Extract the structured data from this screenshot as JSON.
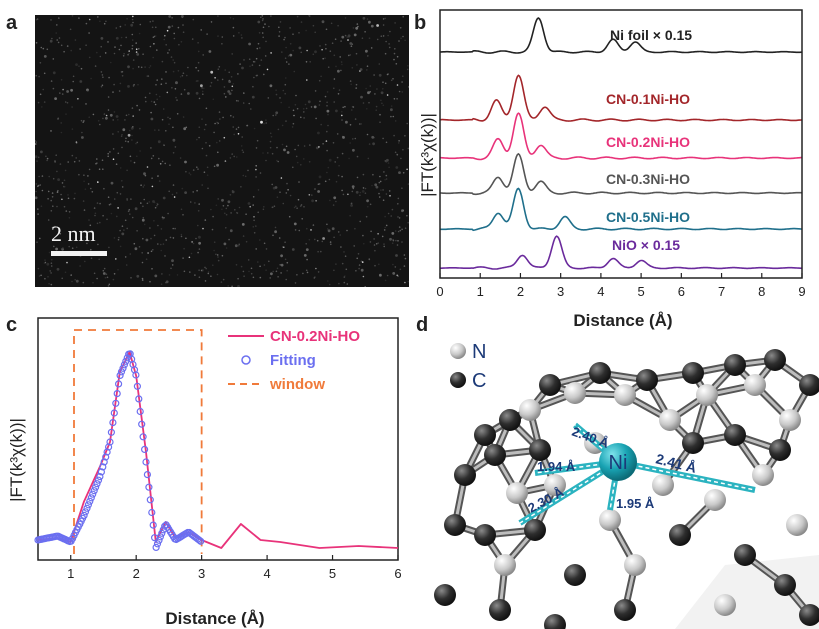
{
  "panels": {
    "a": "a",
    "b": "b",
    "c": "c",
    "d": "d"
  },
  "panel_a": {
    "scale_bar": "2 nm"
  },
  "panel_b": {
    "y_label": "|FT(k³χ(k))|",
    "x_label": "Distance (Å)",
    "x_ticks": [
      "0",
      "1",
      "2",
      "3",
      "4",
      "5",
      "6",
      "7",
      "8",
      "9"
    ],
    "series_labels": [
      {
        "name": "Ni foil × 0.15",
        "color": "#222222"
      },
      {
        "name": "CN-0.1Ni-HO",
        "color": "#a3262a"
      },
      {
        "name": "CN-0.2Ni-HO",
        "color": "#e8337a"
      },
      {
        "name": "CN-0.3Ni-HO",
        "color": "#555555"
      },
      {
        "name": "CN-0.5Ni-HO",
        "color": "#1f6f8b"
      },
      {
        "name": "NiO × 0.15",
        "color": "#6a2a9c"
      }
    ]
  },
  "panel_c": {
    "y_label": "|FT(k³χ(k))|",
    "x_label": "Distance (Å)",
    "x_ticks": [
      "1",
      "2",
      "3",
      "4",
      "5",
      "6"
    ],
    "legend": [
      {
        "label": "CN-0.2Ni-HO",
        "color": "#e8337a"
      },
      {
        "label": "Fitting",
        "color": "#6b6ff0"
      },
      {
        "label": "window",
        "color": "#f07a3a"
      }
    ]
  },
  "panel_d": {
    "legend": [
      {
        "label": "N"
      },
      {
        "label": "C"
      }
    ],
    "center_atom": "Ni",
    "bond_labels": [
      "2.40 Å",
      "1.94 Å",
      "2.30 Å",
      "1.95 Å",
      "2.41 Å"
    ]
  },
  "chart_data": [
    {
      "type": "line",
      "title": "",
      "xlabel": "Distance (Å)",
      "ylabel": "|FT(k³χ(k))|",
      "xlim": [
        0,
        9
      ],
      "series": [
        {
          "name": "Ni foil × 0.15",
          "peaks_x": [
            2.45,
            4.3,
            4.85
          ]
        },
        {
          "name": "CN-0.1Ni-HO",
          "peaks_x": [
            1.4,
            1.95,
            2.6
          ]
        },
        {
          "name": "CN-0.2Ni-HO",
          "peaks_x": [
            1.45,
            1.95,
            2.5
          ]
        },
        {
          "name": "CN-0.3Ni-HO",
          "peaks_x": [
            1.45,
            1.95,
            2.5
          ]
        },
        {
          "name": "CN-0.5Ni-HO",
          "peaks_x": [
            1.45,
            1.95,
            3.1
          ]
        },
        {
          "name": "NiO × 0.15",
          "peaks_x": [
            2.05,
            2.9,
            4.3,
            5.0
          ]
        }
      ]
    },
    {
      "type": "line",
      "title": "",
      "xlabel": "Distance (Å)",
      "ylabel": "|FT(k³χ(k))|",
      "xlim": [
        0.5,
        6
      ],
      "window": [
        1.05,
        3.0
      ],
      "series": [
        {
          "name": "CN-0.2Ni-HO",
          "x": [
            0.5,
            0.8,
            1.0,
            1.2,
            1.45,
            1.6,
            1.75,
            1.9,
            2.0,
            2.15,
            2.3,
            2.45,
            2.6,
            2.8,
            3.0,
            3.3,
            3.6,
            3.9,
            4.2,
            4.8,
            5.4,
            6.0
          ],
          "y": [
            0.06,
            0.07,
            0.05,
            0.25,
            0.43,
            0.55,
            0.9,
            1.0,
            0.88,
            0.5,
            0.05,
            0.15,
            0.07,
            0.1,
            0.06,
            0.02,
            0.14,
            0.06,
            0.05,
            0.02,
            0.03,
            0.02
          ]
        },
        {
          "name": "Fitting",
          "x": [
            0.5,
            0.8,
            1.0,
            1.2,
            1.45,
            1.6,
            1.75,
            1.9,
            2.0,
            2.15,
            2.3,
            2.45,
            2.6,
            2.8,
            3.0
          ],
          "y": [
            0.06,
            0.08,
            0.05,
            0.18,
            0.38,
            0.55,
            0.88,
            1.0,
            0.88,
            0.45,
            0.02,
            0.14,
            0.06,
            0.1,
            0.05
          ]
        }
      ]
    }
  ]
}
